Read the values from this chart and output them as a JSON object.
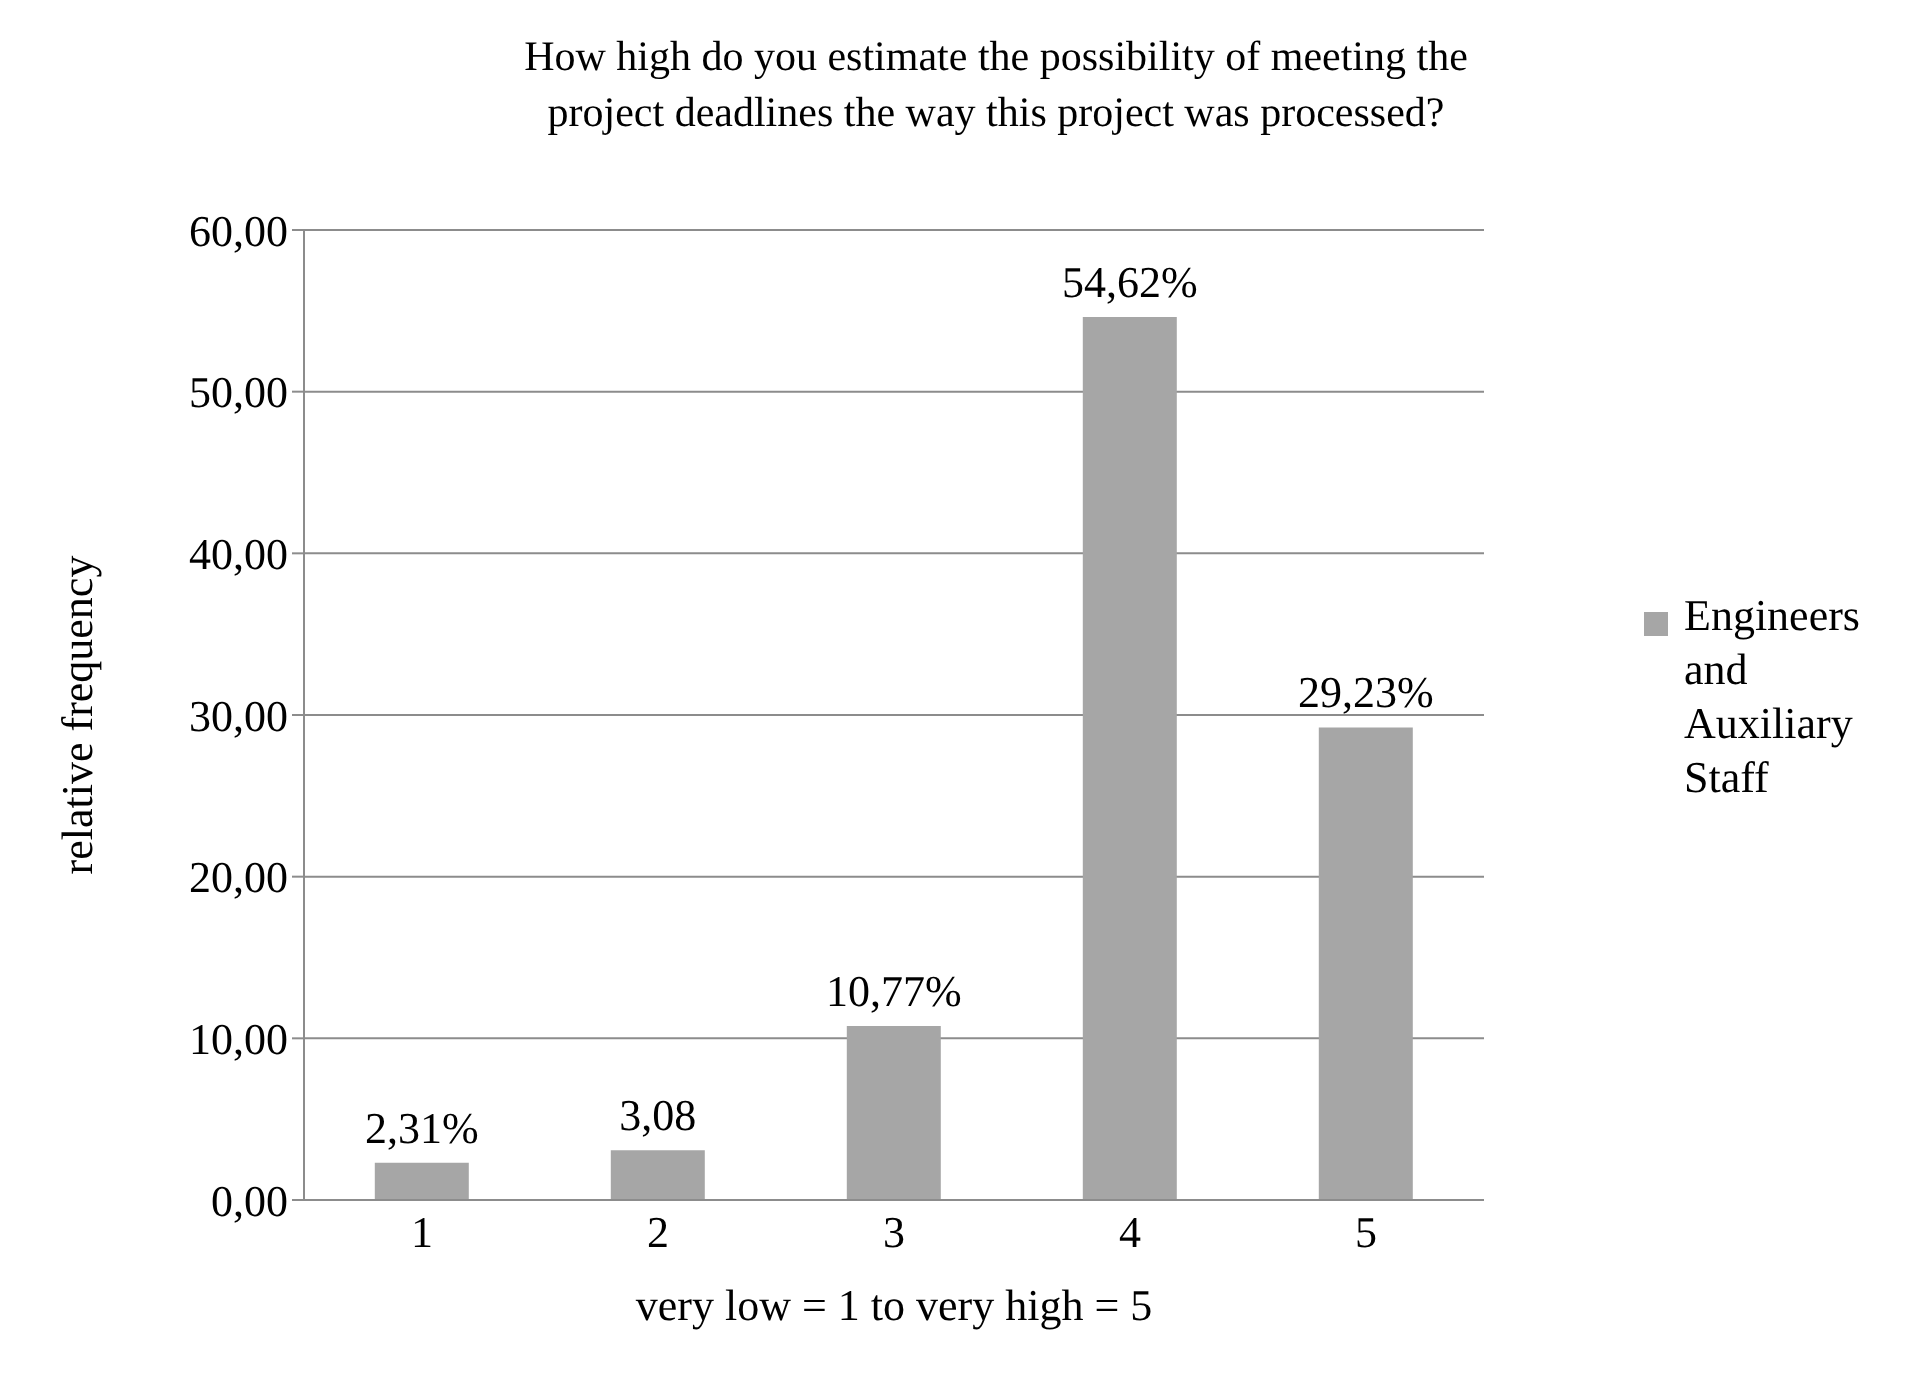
{
  "chart_data": {
    "type": "bar",
    "title": "How high do you estimate the possibility of meeting the project deadlines the way this project was processed?",
    "xlabel": "very low = 1 to very high = 5",
    "ylabel": "relative frequency",
    "categories": [
      "1",
      "2",
      "3",
      "4",
      "5"
    ],
    "series": [
      {
        "name": "Engineers and Auxiliary Staff",
        "color": "#a6a6a6",
        "values": [
          2.31,
          3.08,
          10.77,
          54.62,
          29.23
        ],
        "value_labels": [
          "2,31%",
          "3,08",
          "10,77%",
          "54,62%",
          "29,23%"
        ]
      }
    ],
    "ylim": [
      0,
      60
    ],
    "yticks": [
      {
        "value": 0,
        "label": "0,00"
      },
      {
        "value": 10,
        "label": "10,00"
      },
      {
        "value": 20,
        "label": "20,00"
      },
      {
        "value": 30,
        "label": "30,00"
      },
      {
        "value": 40,
        "label": "40,00"
      },
      {
        "value": 50,
        "label": "50,00"
      },
      {
        "value": 60,
        "label": "60,00"
      }
    ],
    "grid": "y",
    "legend": "right"
  }
}
